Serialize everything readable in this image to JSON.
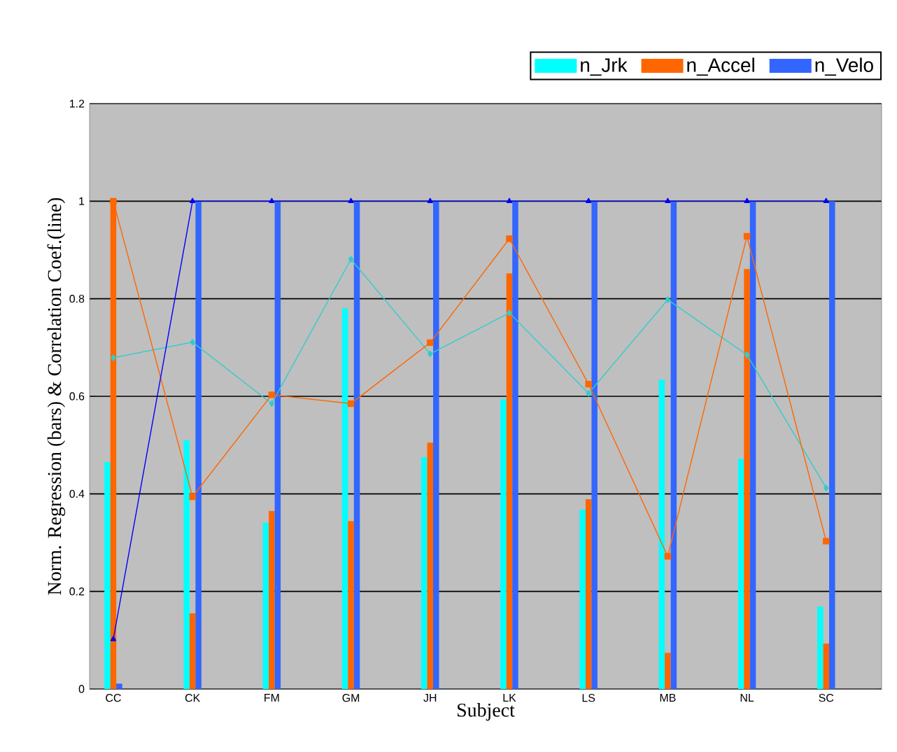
{
  "chart_data": {
    "type": "bar",
    "xlabel": "Subject",
    "ylabel": "Norm. Regression (bars) & Correlation  Coef.(line)",
    "categories": [
      "CC",
      "CK",
      "FM",
      "GM",
      "JH",
      "LK",
      "LS",
      "MB",
      "NL",
      "SC"
    ],
    "series": [
      {
        "name": "n_Jrk",
        "color": "#00ffff",
        "values": [
          0.465,
          0.51,
          0.341,
          0.78,
          0.475,
          0.594,
          0.368,
          0.634,
          0.472,
          0.169
        ]
      },
      {
        "name": "n_Accel",
        "color": "#ff6600",
        "values": [
          1.0,
          0.155,
          0.365,
          0.344,
          0.505,
          0.852,
          0.389,
          0.074,
          0.861,
          0.093
        ]
      },
      {
        "name": "n_Velo",
        "color": "#3366ff",
        "values": [
          0.011,
          1.0,
          1.0,
          1.0,
          1.0,
          1.0,
          1.0,
          1.0,
          1.0,
          1.0
        ]
      },
      {
        "type": "line",
        "color": "#33cccc",
        "marker": "diamond",
        "values": [
          0.679,
          0.711,
          0.585,
          0.881,
          0.687,
          0.771,
          0.606,
          0.798,
          0.685,
          0.412
        ]
      },
      {
        "type": "line",
        "color": "#ff6600",
        "marker": "square",
        "values": [
          1.0,
          0.394,
          0.603,
          0.585,
          0.71,
          0.923,
          0.625,
          0.272,
          0.928,
          0.303
        ]
      },
      {
        "type": "line",
        "color": "#0000ff",
        "marker": "triangle",
        "values": [
          0.102,
          1.0,
          1.0,
          1.0,
          1.0,
          1.0,
          1.0,
          1.0,
          1.0,
          1.0
        ]
      }
    ],
    "ylim": [
      0,
      1.2
    ],
    "yticks": [
      0,
      0.2,
      0.4,
      0.6,
      0.8,
      1,
      1.2
    ],
    "grid": "y",
    "legend": "top right"
  }
}
